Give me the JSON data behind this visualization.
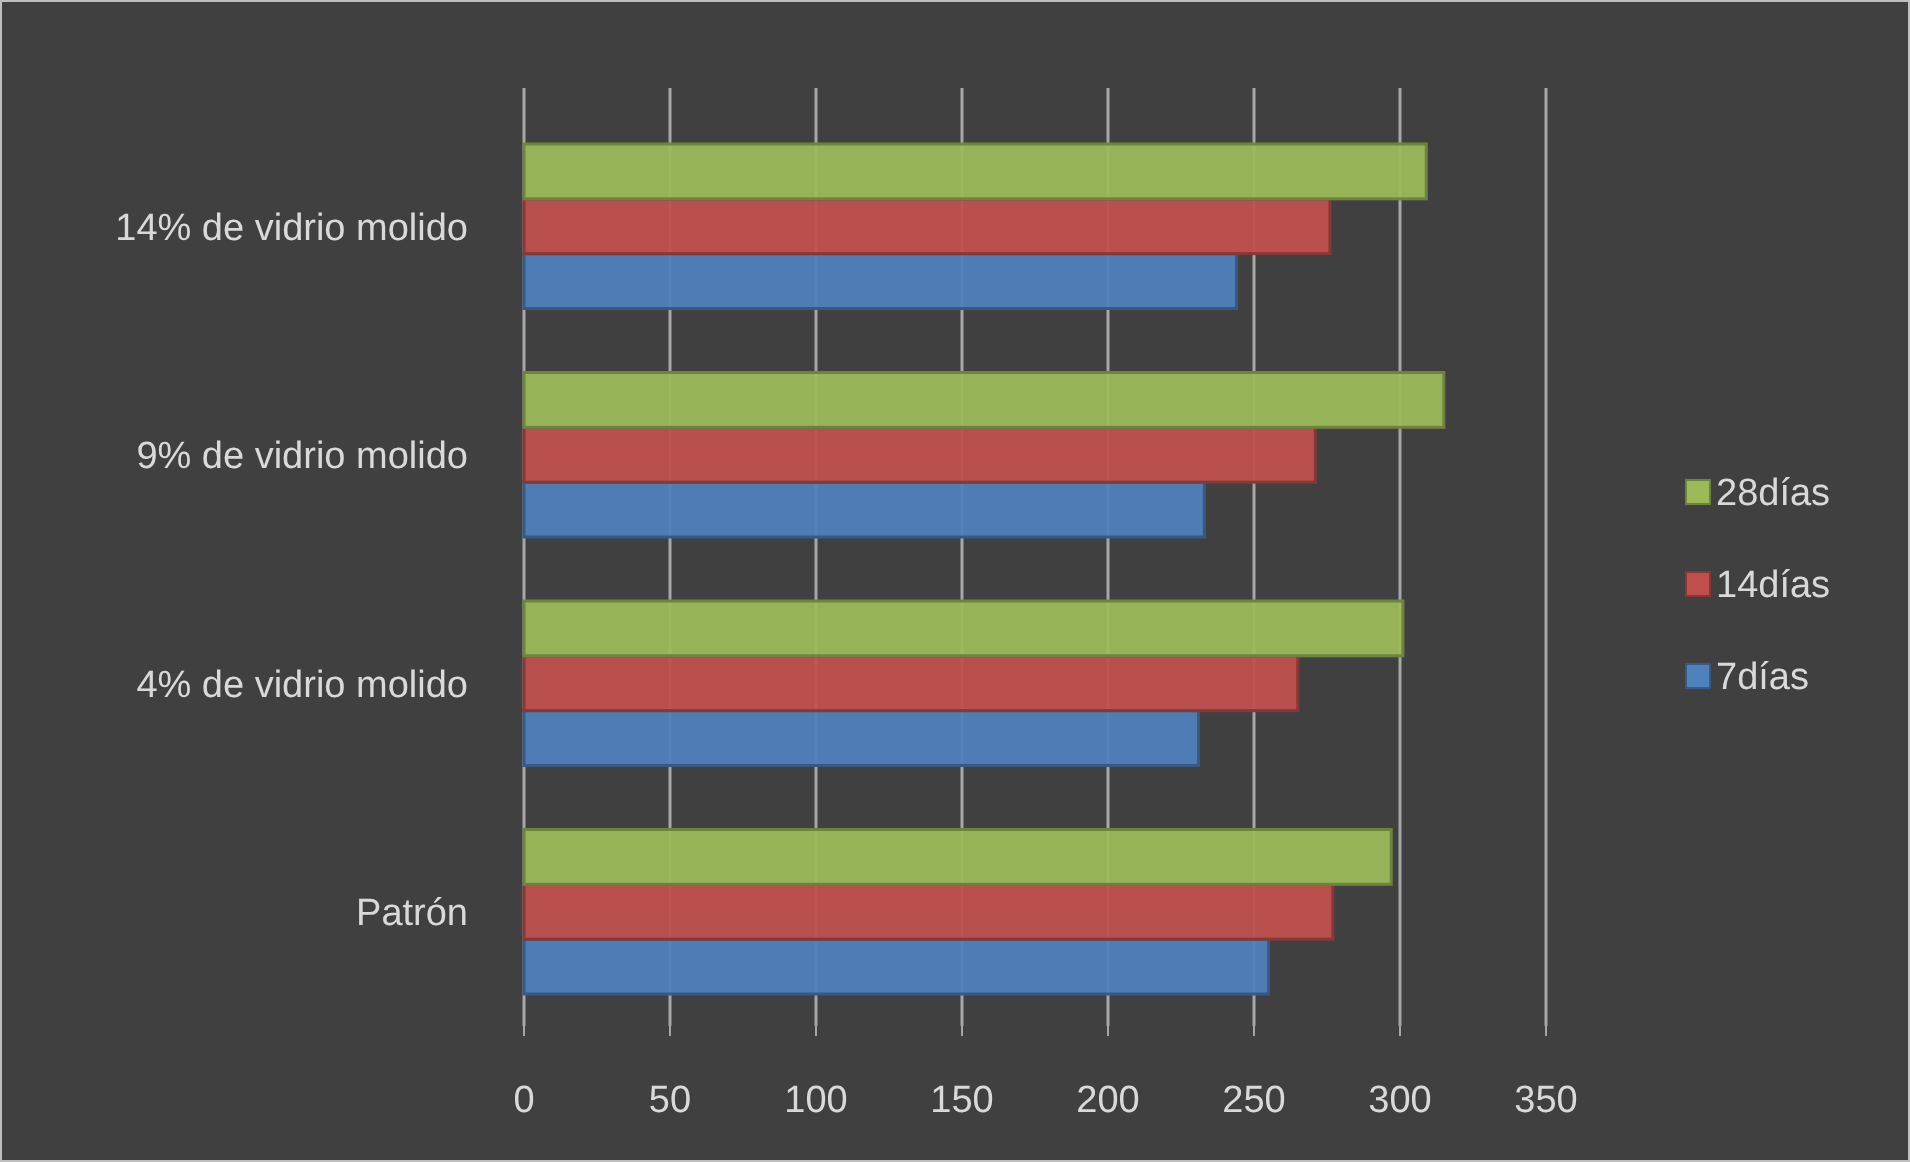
{
  "chart_data": {
    "type": "bar",
    "orientation": "horizontal",
    "categories": [
      "14% de vidrio molido",
      "9% de vidrio molido",
      "4% de vidrio molido",
      "Patrón"
    ],
    "series": [
      {
        "name": "7días",
        "color": "#4f81bd",
        "values": [
          244,
          233,
          231,
          255
        ]
      },
      {
        "name": "14días",
        "color": "#c0504d",
        "values": [
          276,
          271,
          265,
          277
        ]
      },
      {
        "name": "28días",
        "color": "#9bbb59",
        "values": [
          309,
          315,
          301,
          297
        ]
      }
    ],
    "xlim": [
      0,
      350
    ],
    "xticks": [
      0,
      50,
      100,
      150,
      200,
      250,
      300,
      350
    ],
    "grid": "x",
    "legend": "right"
  }
}
